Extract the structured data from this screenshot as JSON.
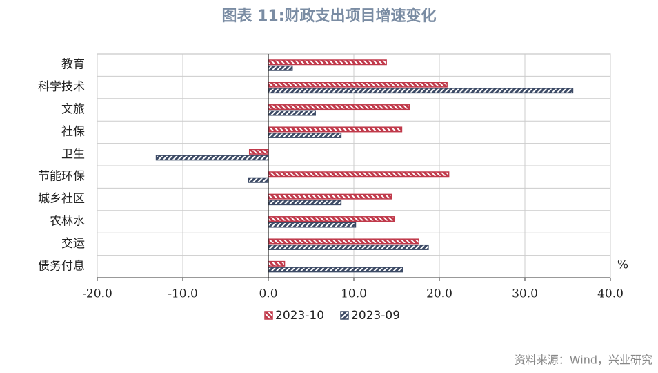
{
  "chart_data": {
    "type": "hbar",
    "title": "图表 11:财政支出项目增速变化",
    "categories": [
      "教育",
      "科学技术",
      "文旅",
      "社保",
      "卫生",
      "节能环保",
      "城乡社区",
      "农林水",
      "交运",
      "债务付息"
    ],
    "series": [
      {
        "name": "2023-10",
        "color": "#c0394a",
        "values": [
          13.8,
          20.9,
          16.5,
          15.6,
          -2.2,
          21.1,
          14.4,
          14.7,
          17.6,
          1.9
        ]
      },
      {
        "name": "2023-09",
        "color": "#3d4b66",
        "values": [
          2.8,
          35.6,
          5.5,
          8.5,
          -13.1,
          -2.3,
          8.5,
          10.2,
          18.7,
          15.7
        ]
      }
    ],
    "xlim": [
      -20,
      40
    ],
    "xticks": [
      {
        "value": -20,
        "label": "-20.0"
      },
      {
        "value": -10,
        "label": "-10.0"
      },
      {
        "value": 0,
        "label": "0.0"
      },
      {
        "value": 10,
        "label": "10.0"
      },
      {
        "value": 20,
        "label": "20.0"
      },
      {
        "value": 30,
        "label": "30.0"
      },
      {
        "value": 40,
        "label": "40.0"
      }
    ],
    "unit": "%",
    "grid": true,
    "legend": "bottom",
    "source": "资料来源：Wind，兴业研究"
  }
}
